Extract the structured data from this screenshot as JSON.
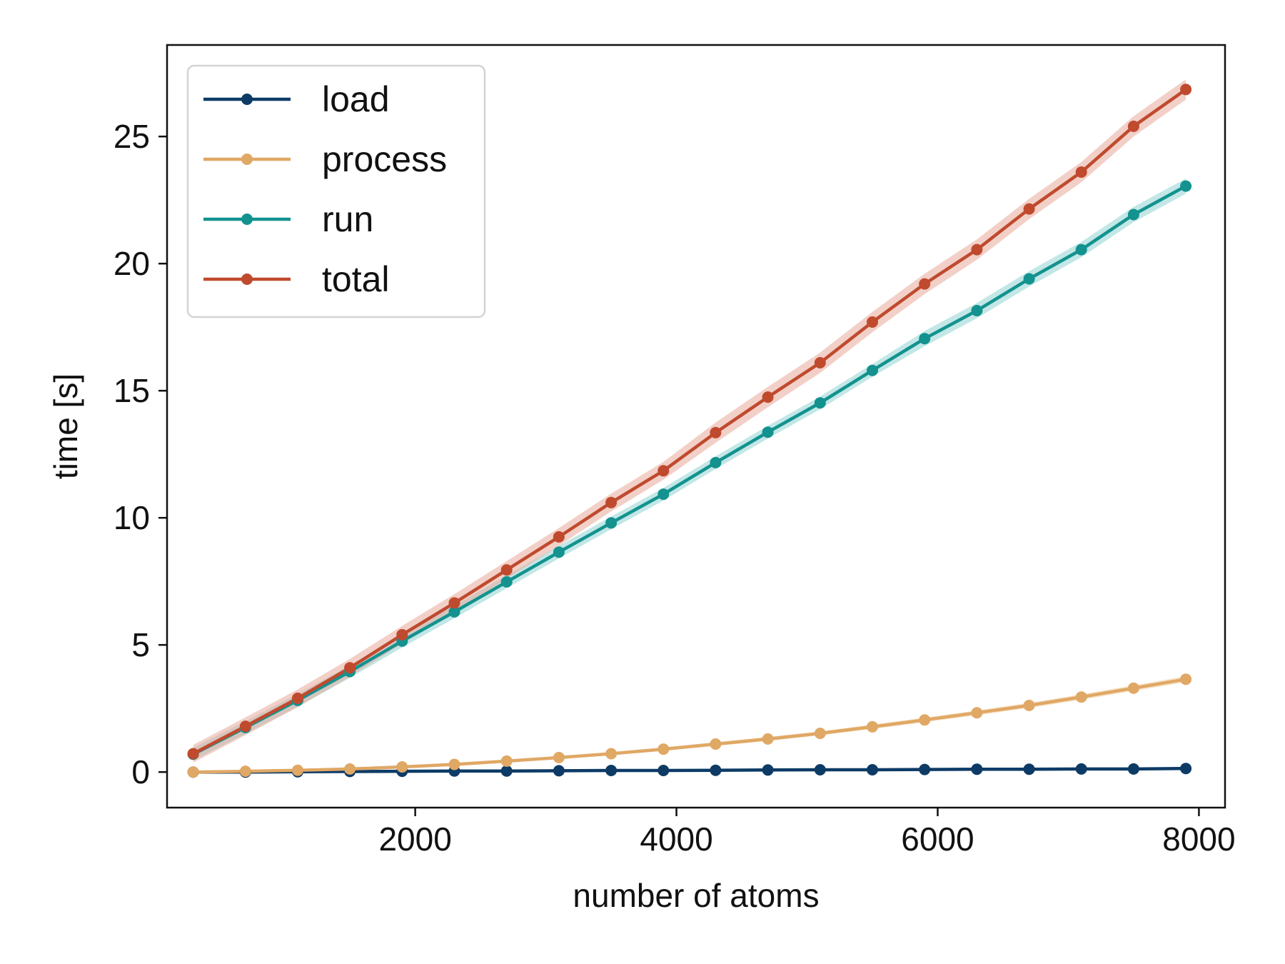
{
  "chart_data": {
    "type": "line",
    "xlabel": "number of atoms",
    "ylabel": "time [s]",
    "xlim": [
      100,
      8200
    ],
    "ylim": [
      -1.4,
      28.6
    ],
    "xticks": [
      2000,
      4000,
      6000,
      8000
    ],
    "yticks": [
      0,
      5,
      10,
      15,
      20,
      25
    ],
    "xtick_labels": [
      "2000",
      "4000",
      "6000",
      "8000"
    ],
    "ytick_labels": [
      "0",
      "5",
      "10",
      "15",
      "20",
      "25"
    ],
    "grid": false,
    "legend_position": "top-left",
    "x": [
      300,
      700,
      1100,
      1500,
      1900,
      2300,
      2700,
      3100,
      3500,
      3900,
      4300,
      4700,
      5100,
      5500,
      5900,
      6300,
      6700,
      7100,
      7500,
      7900
    ],
    "series": [
      {
        "name": "load",
        "color": "#0d3b66",
        "band_color": "#7a8fa6",
        "values": [
          0.0,
          0.0,
          0.01,
          0.02,
          0.03,
          0.04,
          0.04,
          0.05,
          0.06,
          0.06,
          0.07,
          0.08,
          0.09,
          0.09,
          0.1,
          0.11,
          0.11,
          0.12,
          0.12,
          0.14
        ],
        "errors": [
          0.02,
          0.02,
          0.02,
          0.02,
          0.02,
          0.02,
          0.02,
          0.02,
          0.02,
          0.02,
          0.02,
          0.02,
          0.02,
          0.02,
          0.02,
          0.02,
          0.02,
          0.02,
          0.02,
          0.02
        ]
      },
      {
        "name": "process",
        "color": "#e0a865",
        "band_color": "#f0cc9c",
        "values": [
          0.0,
          0.03,
          0.07,
          0.12,
          0.2,
          0.3,
          0.43,
          0.57,
          0.72,
          0.9,
          1.1,
          1.3,
          1.52,
          1.78,
          2.05,
          2.33,
          2.62,
          2.95,
          3.3,
          3.65
        ],
        "errors": [
          0.03,
          0.03,
          0.03,
          0.04,
          0.04,
          0.05,
          0.05,
          0.06,
          0.06,
          0.07,
          0.07,
          0.08,
          0.08,
          0.09,
          0.09,
          0.1,
          0.1,
          0.11,
          0.11,
          0.12
        ]
      },
      {
        "name": "run",
        "color": "#13928f",
        "band_color": "#8fd3d2",
        "values": [
          0.7,
          1.75,
          2.82,
          3.95,
          5.15,
          6.3,
          7.48,
          8.65,
          9.8,
          10.93,
          12.17,
          13.37,
          14.52,
          15.8,
          17.05,
          18.15,
          19.4,
          20.55,
          21.93,
          23.05
        ],
        "errors": [
          0.25,
          0.25,
          0.25,
          0.25,
          0.25,
          0.25,
          0.25,
          0.25,
          0.25,
          0.25,
          0.25,
          0.25,
          0.25,
          0.25,
          0.3,
          0.3,
          0.3,
          0.3,
          0.3,
          0.3
        ]
      },
      {
        "name": "total",
        "color": "#c04a2e",
        "band_color": "#e8aa9b",
        "values": [
          0.72,
          1.8,
          2.9,
          4.1,
          5.4,
          6.65,
          7.95,
          9.25,
          10.6,
          11.85,
          13.35,
          14.75,
          16.1,
          17.7,
          19.2,
          20.55,
          22.15,
          23.6,
          25.4,
          26.85
        ],
        "errors": [
          0.35,
          0.35,
          0.35,
          0.35,
          0.35,
          0.35,
          0.35,
          0.35,
          0.35,
          0.35,
          0.4,
          0.4,
          0.4,
          0.4,
          0.4,
          0.4,
          0.4,
          0.4,
          0.4,
          0.4
        ]
      }
    ]
  }
}
